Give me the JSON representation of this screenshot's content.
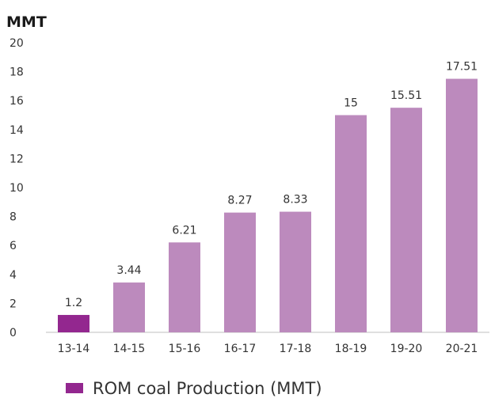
{
  "chart_data": {
    "type": "bar",
    "unit_label": "MMT",
    "categories": [
      "13-14",
      "14-15",
      "15-16",
      "16-17",
      "17-18",
      "18-19",
      "19-20",
      "20-21"
    ],
    "values": [
      1.2,
      3.44,
      6.21,
      8.27,
      8.33,
      15,
      15.51,
      17.51
    ],
    "data_labels": [
      "1.2",
      "3.44",
      "6.21",
      "8.27",
      "8.33",
      "15",
      "15.51",
      "17.51"
    ],
    "ylim": [
      0,
      20
    ],
    "yticks": [
      0,
      2,
      4,
      6,
      8,
      10,
      12,
      14,
      16,
      18,
      20
    ],
    "grid": false,
    "legend_position": "bottom",
    "series": [
      {
        "name": "ROM coal Production (MMT)"
      }
    ],
    "colors": {
      "highlight": "#93278f",
      "bar": "#bc8abd",
      "axis": "#bfbfbf"
    }
  }
}
